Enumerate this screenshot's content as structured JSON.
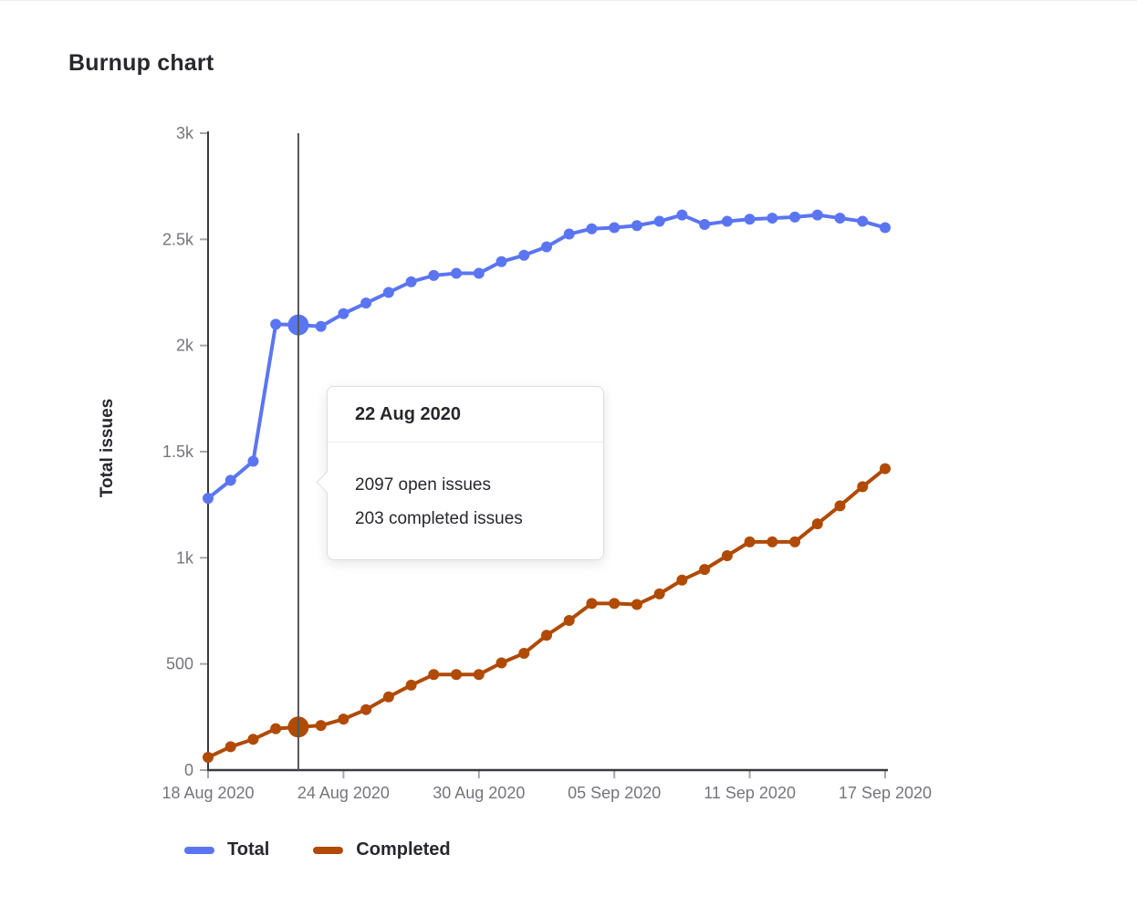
{
  "title": "Burnup chart",
  "tooltip": {
    "date": "22 Aug 2020",
    "open_line": "2097 open issues",
    "completed_line": "203 completed issues"
  },
  "legend": {
    "items": [
      {
        "label": "Total",
        "color": "#5b75f2"
      },
      {
        "label": "Completed",
        "color": "#b04a04"
      }
    ]
  },
  "chart_data": {
    "type": "line",
    "title": "Burnup chart",
    "xlabel": "",
    "ylabel": "Total issues",
    "ylim": [
      0,
      3000
    ],
    "grid": false,
    "legend_position": "bottom-left",
    "axis_color": "#3a3a3f",
    "tick_color": "#a7a7aa",
    "tick_label_color": "#76757c",
    "x": [
      "18 Aug 2020",
      "19 Aug 2020",
      "20 Aug 2020",
      "21 Aug 2020",
      "22 Aug 2020",
      "23 Aug 2020",
      "24 Aug 2020",
      "25 Aug 2020",
      "26 Aug 2020",
      "27 Aug 2020",
      "28 Aug 2020",
      "29 Aug 2020",
      "30 Aug 2020",
      "31 Aug 2020",
      "01 Sep 2020",
      "02 Sep 2020",
      "03 Sep 2020",
      "04 Sep 2020",
      "05 Sep 2020",
      "06 Sep 2020",
      "07 Sep 2020",
      "08 Sep 2020",
      "09 Sep 2020",
      "10 Sep 2020",
      "11 Sep 2020",
      "12 Sep 2020",
      "13 Sep 2020",
      "14 Sep 2020",
      "15 Sep 2020",
      "16 Sep 2020",
      "17 Sep 2020"
    ],
    "series": [
      {
        "name": "Total",
        "color": "#5b75f2",
        "values": [
          1280,
          1365,
          1455,
          2100,
          2097,
          2090,
          2150,
          2200,
          2250,
          2300,
          2330,
          2340,
          2340,
          2395,
          2425,
          2465,
          2525,
          2550,
          2555,
          2565,
          2585,
          2615,
          2570,
          2585,
          2595,
          2600,
          2605,
          2615,
          2600,
          2585,
          2555
        ]
      },
      {
        "name": "Completed",
        "color": "#b04a04",
        "values": [
          60,
          110,
          145,
          195,
          203,
          210,
          240,
          285,
          345,
          400,
          450,
          450,
          450,
          505,
          550,
          635,
          705,
          785,
          785,
          780,
          830,
          895,
          945,
          1010,
          1075,
          1075,
          1075,
          1160,
          1245,
          1335,
          1420
        ]
      }
    ],
    "y_ticks": [
      {
        "label": "0",
        "value": 0
      },
      {
        "label": "500",
        "value": 500
      },
      {
        "label": "1k",
        "value": 1000
      },
      {
        "label": "1.5k",
        "value": 1500
      },
      {
        "label": "2k",
        "value": 2000
      },
      {
        "label": "2.5k",
        "value": 2500
      },
      {
        "label": "3k",
        "value": 3000
      }
    ],
    "x_ticks": [
      {
        "label": "18 Aug 2020",
        "index": 0
      },
      {
        "label": "24 Aug 2020",
        "index": 6
      },
      {
        "label": "30 Aug 2020",
        "index": 12
      },
      {
        "label": "05 Sep 2020",
        "index": 18
      },
      {
        "label": "11 Sep 2020",
        "index": 24
      },
      {
        "label": "17 Sep 2020",
        "index": 30
      }
    ],
    "hover": {
      "index": 4,
      "date": "22 Aug 2020",
      "vline_color": "#54565b"
    }
  }
}
